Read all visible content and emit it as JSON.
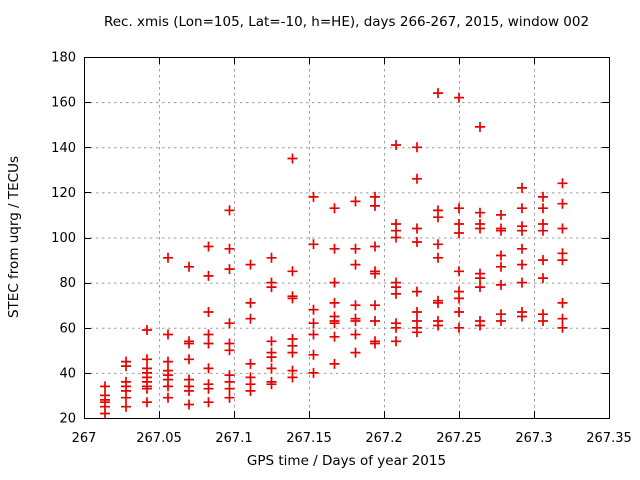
{
  "chart_data": {
    "type": "scatter",
    "title": "Rec. xmis (Lon=105, Lat=-10, h=HE), days 266-267, 2015, window 002",
    "xlabel": "GPS time / Days of year 2015",
    "ylabel": "STEC from uqrg / TECUs",
    "xlim": [
      267,
      267.35
    ],
    "ylim": [
      20,
      180
    ],
    "xticks": {
      "values": [
        267,
        267.05,
        267.1,
        267.15,
        267.2,
        267.25,
        267.3,
        267.35
      ],
      "labels": [
        "267",
        "267.05",
        "267.1",
        "267.15",
        "267.2",
        "267.25",
        "267.3",
        "267.35"
      ]
    },
    "yticks": {
      "values": [
        20,
        40,
        60,
        80,
        100,
        120,
        140,
        160,
        180
      ],
      "labels": [
        "20",
        "40",
        "60",
        "80",
        "100",
        "120",
        "140",
        "160",
        "180"
      ]
    },
    "grid": true,
    "legend": "none",
    "marker": {
      "shape": "plus",
      "color": "#e60000"
    },
    "series": [
      {
        "name": "STEC",
        "columns": [
          {
            "x": 267.014,
            "y": [
              34,
              30,
              28,
              27,
              25,
              22
            ]
          },
          {
            "x": 267.028,
            "y": [
              45,
              43,
              36,
              34,
              32,
              29,
              25
            ]
          },
          {
            "x": 267.042,
            "y": [
              59,
              46,
              42,
              40,
              38,
              36,
              34,
              33,
              27
            ]
          },
          {
            "x": 267.056,
            "y": [
              91,
              57,
              45,
              41,
              39,
              37,
              34,
              29
            ]
          },
          {
            "x": 267.07,
            "y": [
              87,
              54,
              53,
              46,
              37,
              34,
              32,
              26
            ]
          },
          {
            "x": 267.083,
            "y": [
              96,
              83,
              67,
              57,
              53,
              42,
              35,
              33,
              27
            ]
          },
          {
            "x": 267.097,
            "y": [
              112,
              95,
              86,
              62,
              53,
              50,
              39,
              36,
              33,
              29
            ]
          },
          {
            "x": 267.111,
            "y": [
              88,
              71,
              64,
              44,
              38,
              35,
              32
            ]
          },
          {
            "x": 267.125,
            "y": [
              91,
              80,
              78,
              54,
              49,
              47,
              42,
              36,
              35
            ]
          },
          {
            "x": 267.139,
            "y": [
              135,
              85,
              74,
              73,
              55,
              52,
              49,
              41,
              38
            ]
          },
          {
            "x": 267.153,
            "y": [
              118,
              97,
              68,
              62,
              57,
              48,
              40
            ]
          },
          {
            "x": 267.167,
            "y": [
              113,
              95,
              80,
              71,
              65,
              63,
              62,
              56,
              44
            ]
          },
          {
            "x": 267.181,
            "y": [
              116,
              95,
              88,
              70,
              64,
              63,
              57,
              49
            ]
          },
          {
            "x": 267.194,
            "y": [
              118,
              114,
              96,
              85,
              84,
              70,
              63,
              54,
              53
            ]
          },
          {
            "x": 267.208,
            "y": [
              141,
              106,
              103,
              100,
              80,
              78,
              75,
              62,
              60,
              54
            ]
          },
          {
            "x": 267.222,
            "y": [
              140,
              126,
              104,
              98,
              76,
              67,
              63,
              60,
              58
            ]
          },
          {
            "x": 267.236,
            "y": [
              164,
              112,
              109,
              97,
              91,
              72,
              71,
              63,
              61
            ]
          },
          {
            "x": 267.25,
            "y": [
              162,
              113,
              106,
              102,
              85,
              76,
              73,
              67,
              60
            ]
          },
          {
            "x": 267.264,
            "y": [
              149,
              111,
              106,
              104,
              84,
              82,
              78,
              63,
              61
            ]
          },
          {
            "x": 267.278,
            "y": [
              110,
              104,
              103,
              92,
              87,
              79,
              66,
              63
            ]
          },
          {
            "x": 267.292,
            "y": [
              122,
              113,
              105,
              103,
              95,
              88,
              80,
              67,
              65
            ]
          },
          {
            "x": 267.306,
            "y": [
              118,
              113,
              106,
              103,
              90,
              82,
              66,
              63
            ]
          },
          {
            "x": 267.319,
            "y": [
              124,
              115,
              104,
              93,
              90,
              71,
              64,
              60
            ]
          }
        ]
      }
    ],
    "colors": {
      "marker": "#e60000",
      "grid": "#9e9e9e",
      "axis": "#000000",
      "background": "#ffffff",
      "text": "#000000"
    }
  }
}
